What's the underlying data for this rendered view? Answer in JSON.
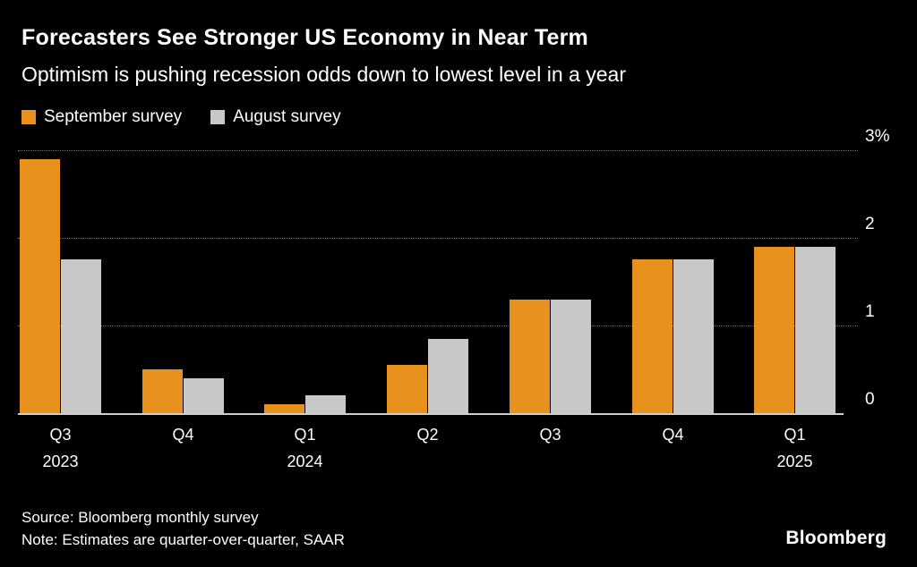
{
  "header": {
    "title": "Forecasters See Stronger US Economy in Near Term",
    "subtitle": "Optimism is pushing recession odds down to lowest level in a year"
  },
  "legend": [
    {
      "label": "September survey",
      "color": "#E8911D"
    },
    {
      "label": "August survey",
      "color": "#C8C8C8"
    }
  ],
  "chart_data": {
    "type": "bar",
    "title": "Forecasters See Stronger US Economy in Near Term",
    "subtitle": "Optimism is pushing recession odds down to lowest level in a year",
    "categories": [
      "Q3",
      "Q4",
      "Q1",
      "Q2",
      "Q3",
      "Q4",
      "Q1"
    ],
    "category_years": [
      "2023",
      "",
      "2024",
      "",
      "",
      "",
      "2025"
    ],
    "series": [
      {
        "name": "September survey",
        "color": "#E8911D",
        "values": [
          2.9,
          0.5,
          0.1,
          0.55,
          1.3,
          1.75,
          1.9
        ]
      },
      {
        "name": "August survey",
        "color": "#C8C8C8",
        "values": [
          1.75,
          0.4,
          0.2,
          0.85,
          1.3,
          1.75,
          1.9
        ]
      }
    ],
    "ylabel": "%",
    "ylim": [
      0,
      3.2
    ],
    "yticks": [
      {
        "value": 0,
        "label": "0"
      },
      {
        "value": 1,
        "label": "1"
      },
      {
        "value": 2,
        "label": "2"
      },
      {
        "value": 3,
        "label": "3%"
      }
    ],
    "grid": "horizontal-dotted",
    "legend_position": "top-left",
    "background": "#000000"
  },
  "footer": {
    "source": "Source: Bloomberg monthly survey",
    "note": "Note: Estimates are quarter-over-quarter, SAAR",
    "logo": "Bloomberg"
  }
}
